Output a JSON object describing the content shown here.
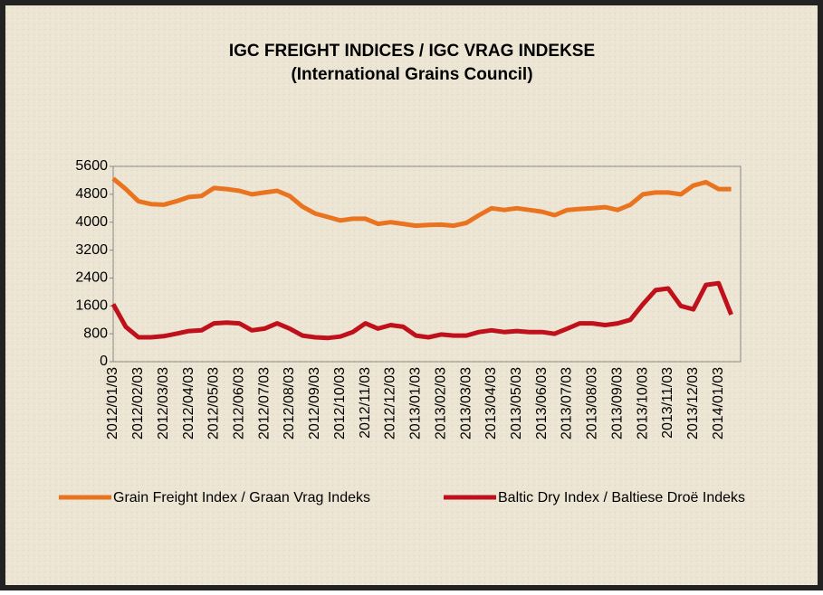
{
  "chart_data": {
    "type": "line",
    "title": "IGC FREIGHT INDICES / IGC VRAG INDEKSE",
    "subtitle": "(International Grains Council)",
    "categories": [
      "2012/01/03",
      null,
      "2012/02/03",
      null,
      "2012/03/03",
      null,
      "2012/04/03",
      null,
      "2012/05/03",
      null,
      "2012/06/03",
      null,
      "2012/07/03",
      null,
      "2012/08/03",
      null,
      "2012/09/03",
      null,
      "2012/10/03",
      null,
      "2012/11/03",
      null,
      "2012/12/03",
      null,
      "2013/01/03",
      null,
      "2013/02/03",
      null,
      "2013/03/03",
      null,
      "2013/04/03",
      null,
      "2013/05/03",
      null,
      "2013/06/03",
      null,
      "2013/07/03",
      null,
      "2013/08/03",
      null,
      "2013/09/03",
      null,
      "2013/10/03",
      null,
      "2013/11/03",
      null,
      "2013/12/03",
      null,
      "2014/01/03",
      null
    ],
    "series": [
      {
        "name": "Grain Freight Index / Graan Vrag Indeks",
        "color": "#e9731f",
        "values": [
          5250,
          4950,
          4600,
          4520,
          4500,
          4600,
          4720,
          4750,
          4980,
          4950,
          4900,
          4800,
          4850,
          4900,
          4750,
          4450,
          4250,
          4150,
          4050,
          4100,
          4100,
          3950,
          4000,
          3950,
          3900,
          3920,
          3930,
          3900,
          3980,
          4200,
          4400,
          4350,
          4400,
          4350,
          4300,
          4200,
          4350,
          4380,
          4400,
          4430,
          4350,
          4500,
          4800,
          4850,
          4850,
          4800,
          5050,
          5150,
          4950,
          4950
        ]
      },
      {
        "name": "Baltic Dry Index / Baltiese Droë Indeks",
        "color": "#c0101c",
        "values": [
          1650,
          1000,
          700,
          700,
          730,
          800,
          880,
          900,
          1100,
          1120,
          1100,
          900,
          950,
          1100,
          950,
          750,
          700,
          680,
          720,
          850,
          1100,
          950,
          1050,
          1000,
          750,
          700,
          780,
          750,
          750,
          850,
          900,
          850,
          880,
          850,
          850,
          800,
          950,
          1100,
          1100,
          1050,
          1100,
          1200,
          1650,
          2050,
          2100,
          1600,
          1500,
          2200,
          2250,
          1350
        ]
      }
    ],
    "ylim": [
      0,
      5600
    ],
    "yticks": [
      0,
      800,
      1600,
      2400,
      3200,
      4000,
      4800,
      5600
    ]
  }
}
